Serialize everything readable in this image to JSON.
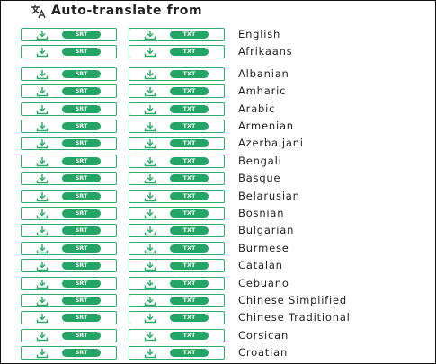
{
  "header": {
    "title": "Auto-translate from"
  },
  "buttons": [
    "SRT",
    "TXT"
  ],
  "groups": [
    {
      "languages": [
        "English",
        "Afrikaans"
      ]
    },
    {
      "languages": [
        "Albanian",
        "Amharic",
        "Arabic",
        "Armenian",
        "Azerbaijani",
        "Bengali",
        "Basque",
        "Belarusian",
        "Bosnian",
        "Bulgarian",
        "Burmese",
        "Catalan",
        "Cebuano",
        "Chinese Simplified",
        "Chinese Traditional",
        "Corsican",
        "Croatian"
      ]
    }
  ]
}
